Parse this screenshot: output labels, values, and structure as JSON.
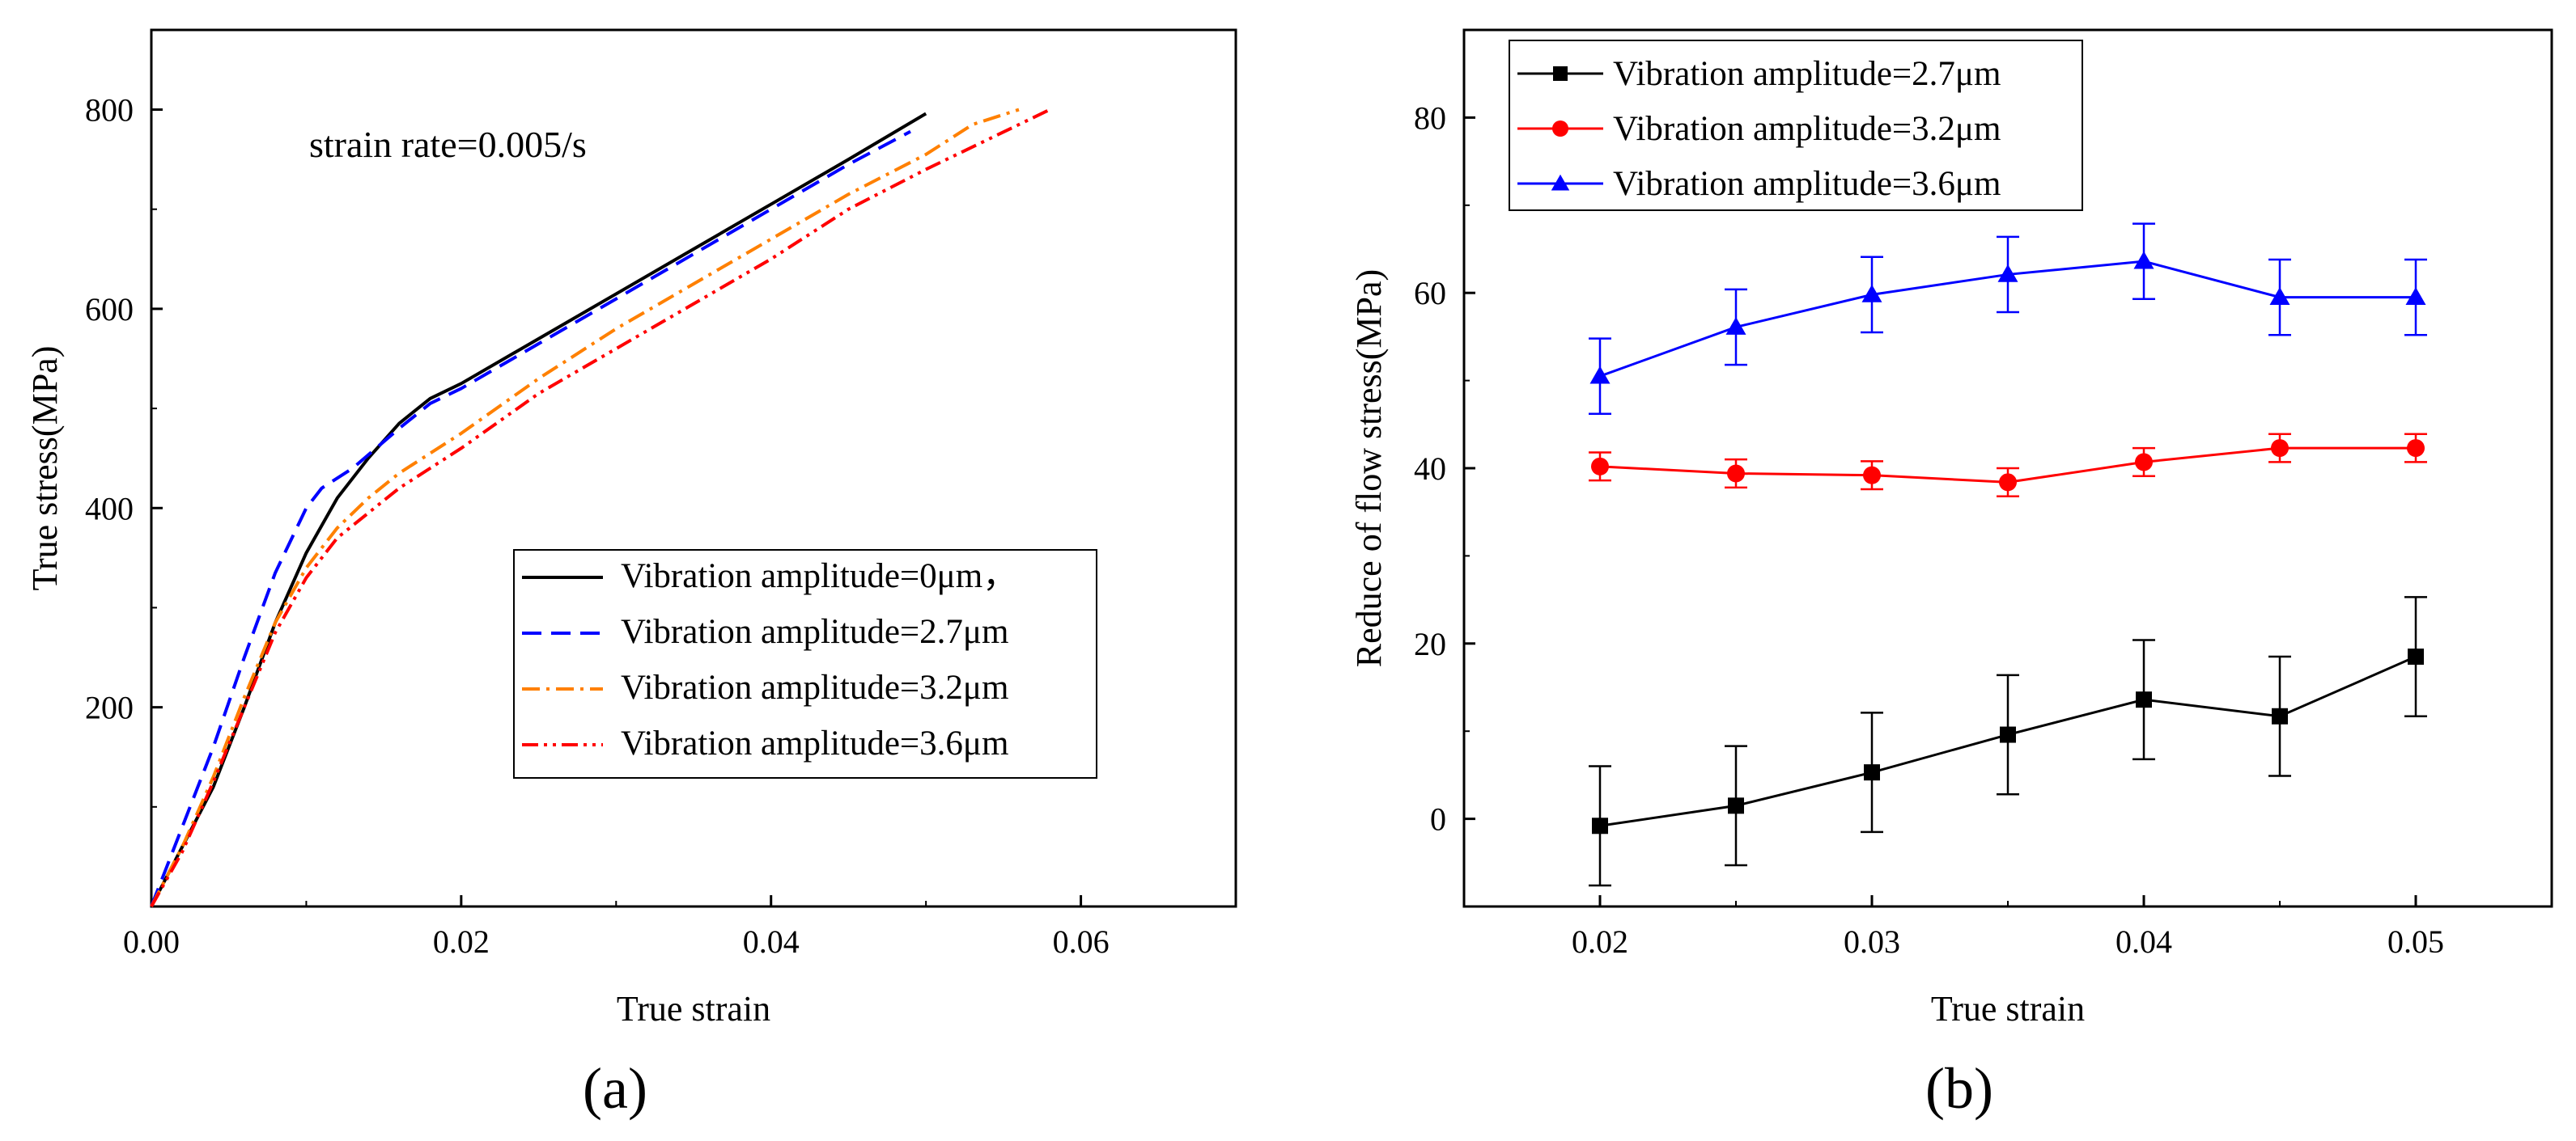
{
  "chart_data": [
    {
      "type": "line",
      "panel_label": "(a)",
      "xlabel": "True strain",
      "ylabel": "True stress(MPa)",
      "xlim": [
        0,
        0.07
      ],
      "ylim": [
        0,
        880
      ],
      "xticks": [
        0.0,
        0.02,
        0.04,
        0.06
      ],
      "xtick_labels": [
        "0.00",
        "0.02",
        "0.04",
        "0.06"
      ],
      "yticks": [
        200,
        400,
        600,
        800
      ],
      "ytick_labels": [
        "200",
        "400",
        "600",
        "800"
      ],
      "annotation": "strain rate=0.005/s",
      "legend_position": "center-right",
      "grid": false,
      "series": [
        {
          "name": "Vibration amplitude=0μm，",
          "color": "#000000",
          "dash": "solid",
          "x": [
            0,
            0.002,
            0.004,
            0.006,
            0.008,
            0.01,
            0.012,
            0.014,
            0.016,
            0.018,
            0.02,
            0.025,
            0.03,
            0.035,
            0.04,
            0.045,
            0.05
          ],
          "y": [
            0,
            60,
            120,
            200,
            285,
            355,
            410,
            450,
            485,
            510,
            525,
            570,
            615,
            660,
            705,
            750,
            796
          ]
        },
        {
          "name": "Vibration amplitude=2.7μm",
          "color": "#0000ff",
          "dash": "long-dash",
          "x": [
            0,
            0.002,
            0.004,
            0.006,
            0.008,
            0.01,
            0.011,
            0.013,
            0.016,
            0.018,
            0.02,
            0.025,
            0.03,
            0.035,
            0.04,
            0.045,
            0.049
          ],
          "y": [
            0,
            80,
            160,
            250,
            335,
            400,
            420,
            440,
            480,
            505,
            520,
            565,
            610,
            655,
            700,
            745,
            778
          ]
        },
        {
          "name": "Vibration amplitude=3.2μm",
          "color": "#ff8000",
          "dash": "dash-dot",
          "x": [
            0,
            0.002,
            0.004,
            0.006,
            0.008,
            0.01,
            0.012,
            0.014,
            0.016,
            0.018,
            0.02,
            0.025,
            0.03,
            0.035,
            0.04,
            0.045,
            0.05,
            0.053,
            0.056
          ],
          "y": [
            0,
            60,
            130,
            210,
            285,
            340,
            380,
            410,
            435,
            455,
            475,
            530,
            580,
            625,
            670,
            715,
            755,
            785,
            800
          ]
        },
        {
          "name": "Vibration amplitude=3.6μm",
          "color": "#ff0000",
          "dash": "dash-dot-dot",
          "x": [
            0,
            0.002,
            0.004,
            0.006,
            0.008,
            0.01,
            0.012,
            0.014,
            0.016,
            0.018,
            0.02,
            0.025,
            0.03,
            0.035,
            0.04,
            0.045,
            0.05,
            0.054,
            0.058
          ],
          "y": [
            0,
            55,
            125,
            200,
            275,
            330,
            370,
            395,
            420,
            440,
            460,
            515,
            560,
            605,
            650,
            700,
            740,
            770,
            800
          ]
        }
      ]
    },
    {
      "type": "line",
      "panel_label": "(b)",
      "xlabel": "True strain",
      "ylabel": "Reduce of flow stress(MPa)",
      "xlim": [
        0.015,
        0.055
      ],
      "ylim": [
        -10,
        90
      ],
      "xticks": [
        0.02,
        0.025,
        0.03,
        0.035,
        0.04,
        0.045,
        0.05
      ],
      "xtick_labels": [
        "0.02",
        "",
        "0.03",
        "",
        "0.04",
        "",
        "0.05"
      ],
      "yticks": [
        0,
        20,
        40,
        60,
        80
      ],
      "ytick_labels": [
        "0",
        "20",
        "40",
        "60",
        "80"
      ],
      "legend_position": "top-left",
      "grid": false,
      "x": [
        0.02,
        0.025,
        0.03,
        0.035,
        0.04,
        0.045,
        0.05
      ],
      "series": [
        {
          "name": "Vibration amplitude=2.7μm",
          "color": "#000000",
          "marker": "square",
          "values": [
            -0.8,
            1.5,
            5.3,
            9.6,
            13.6,
            11.7,
            18.5
          ],
          "errors": [
            6.8,
            6.8,
            6.8,
            6.8,
            6.8,
            6.8,
            6.8
          ]
        },
        {
          "name": "Vibration amplitude=3.2μm",
          "color": "#ff0000",
          "marker": "circle",
          "values": [
            40.2,
            39.4,
            39.2,
            38.4,
            40.7,
            42.3,
            42.3
          ],
          "errors": [
            1.6,
            1.6,
            1.6,
            1.6,
            1.6,
            1.6,
            1.6
          ]
        },
        {
          "name": "Vibration amplitude=3.6μm",
          "color": "#0000ff",
          "marker": "triangle",
          "values": [
            50.5,
            56.1,
            59.8,
            62.1,
            63.6,
            59.5,
            59.5
          ],
          "errors": [
            4.3,
            4.3,
            4.3,
            4.3,
            4.3,
            4.3,
            4.3
          ]
        }
      ]
    }
  ]
}
